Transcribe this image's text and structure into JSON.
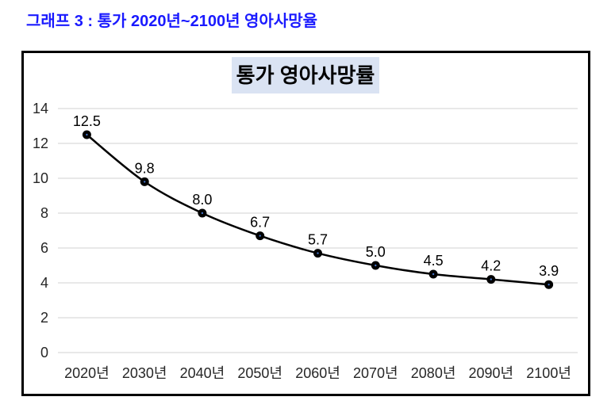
{
  "page": {
    "title": "그래프 3 : 통가 2020년~2100년 영아사망율",
    "title_color": "#1a1aff",
    "background": "#ffffff"
  },
  "chart_data": {
    "type": "line",
    "title": "통가 영아사망률",
    "title_bg": "#dae3f3",
    "categories": [
      "2020년",
      "2030년",
      "2040년",
      "2050년",
      "2060년",
      "2070년",
      "2080년",
      "2090년",
      "2100년"
    ],
    "values": [
      12.5,
      9.8,
      8.0,
      6.7,
      5.7,
      5.0,
      4.5,
      4.2,
      3.9
    ],
    "data_labels": [
      "12.5",
      "9.8",
      "8.0",
      "6.7",
      "5.7",
      "5.0",
      "4.5",
      "4.2",
      "3.9"
    ],
    "y_ticks": [
      0,
      2,
      4,
      6,
      8,
      10,
      12,
      14
    ],
    "ylim": [
      0,
      14
    ],
    "xlabel": "",
    "ylabel": "",
    "grid": "horizontal",
    "legend": "none",
    "smoothed_line": true,
    "line_color": "#000000",
    "marker_color": "#000000",
    "marker_center_color": "#4472c4",
    "gridline_color": "#d9d9d9",
    "axis_label_color": "#262626",
    "data_label_color": "#000000",
    "frame_border_color": "#000000"
  }
}
